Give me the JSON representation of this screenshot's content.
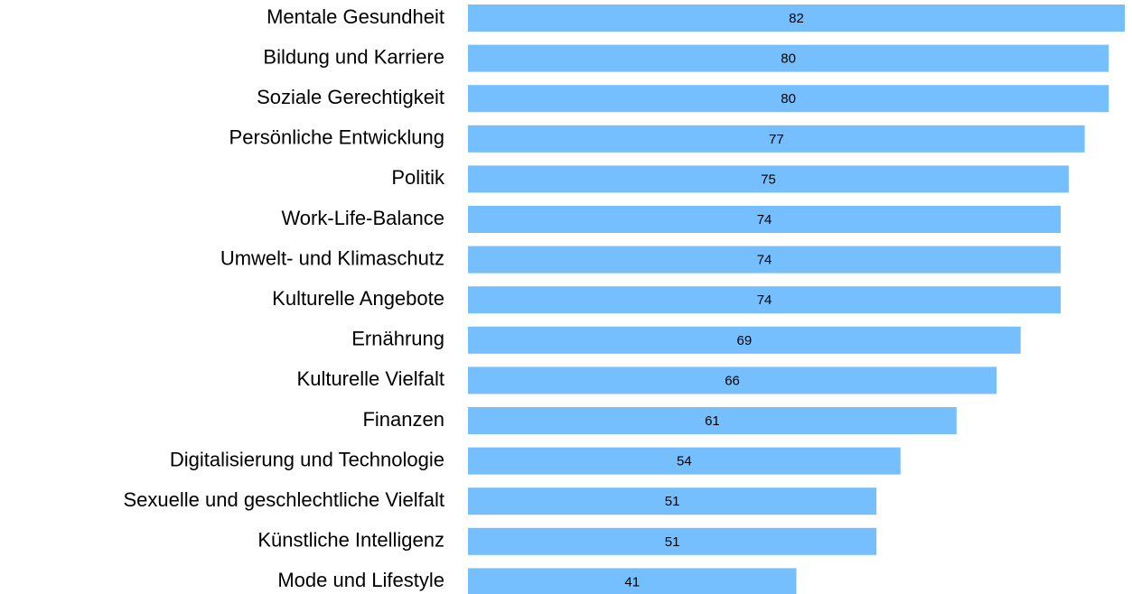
{
  "chart_data": {
    "type": "hbar",
    "color": "#75bfff",
    "categories": [
      "Mentale Gesundheit",
      "Bildung und Karriere",
      "Soziale Gerechtigkeit",
      "Persönliche Entwicklung",
      "Politik",
      "Work-Life-Balance",
      "Umwelt- und Klimaschutz",
      "Kulturelle Angebote",
      "Ernährung",
      "Kulturelle Vielfalt",
      "Finanzen",
      "Digitalisierung und Technologie",
      "Sexuelle und geschlechtliche Vielfalt",
      "Künstliche Intelligenz",
      "Mode und Lifestyle"
    ],
    "values": [
      82,
      80,
      80,
      77,
      75,
      74,
      74,
      74,
      69,
      66,
      61,
      54,
      51,
      51,
      41
    ]
  }
}
